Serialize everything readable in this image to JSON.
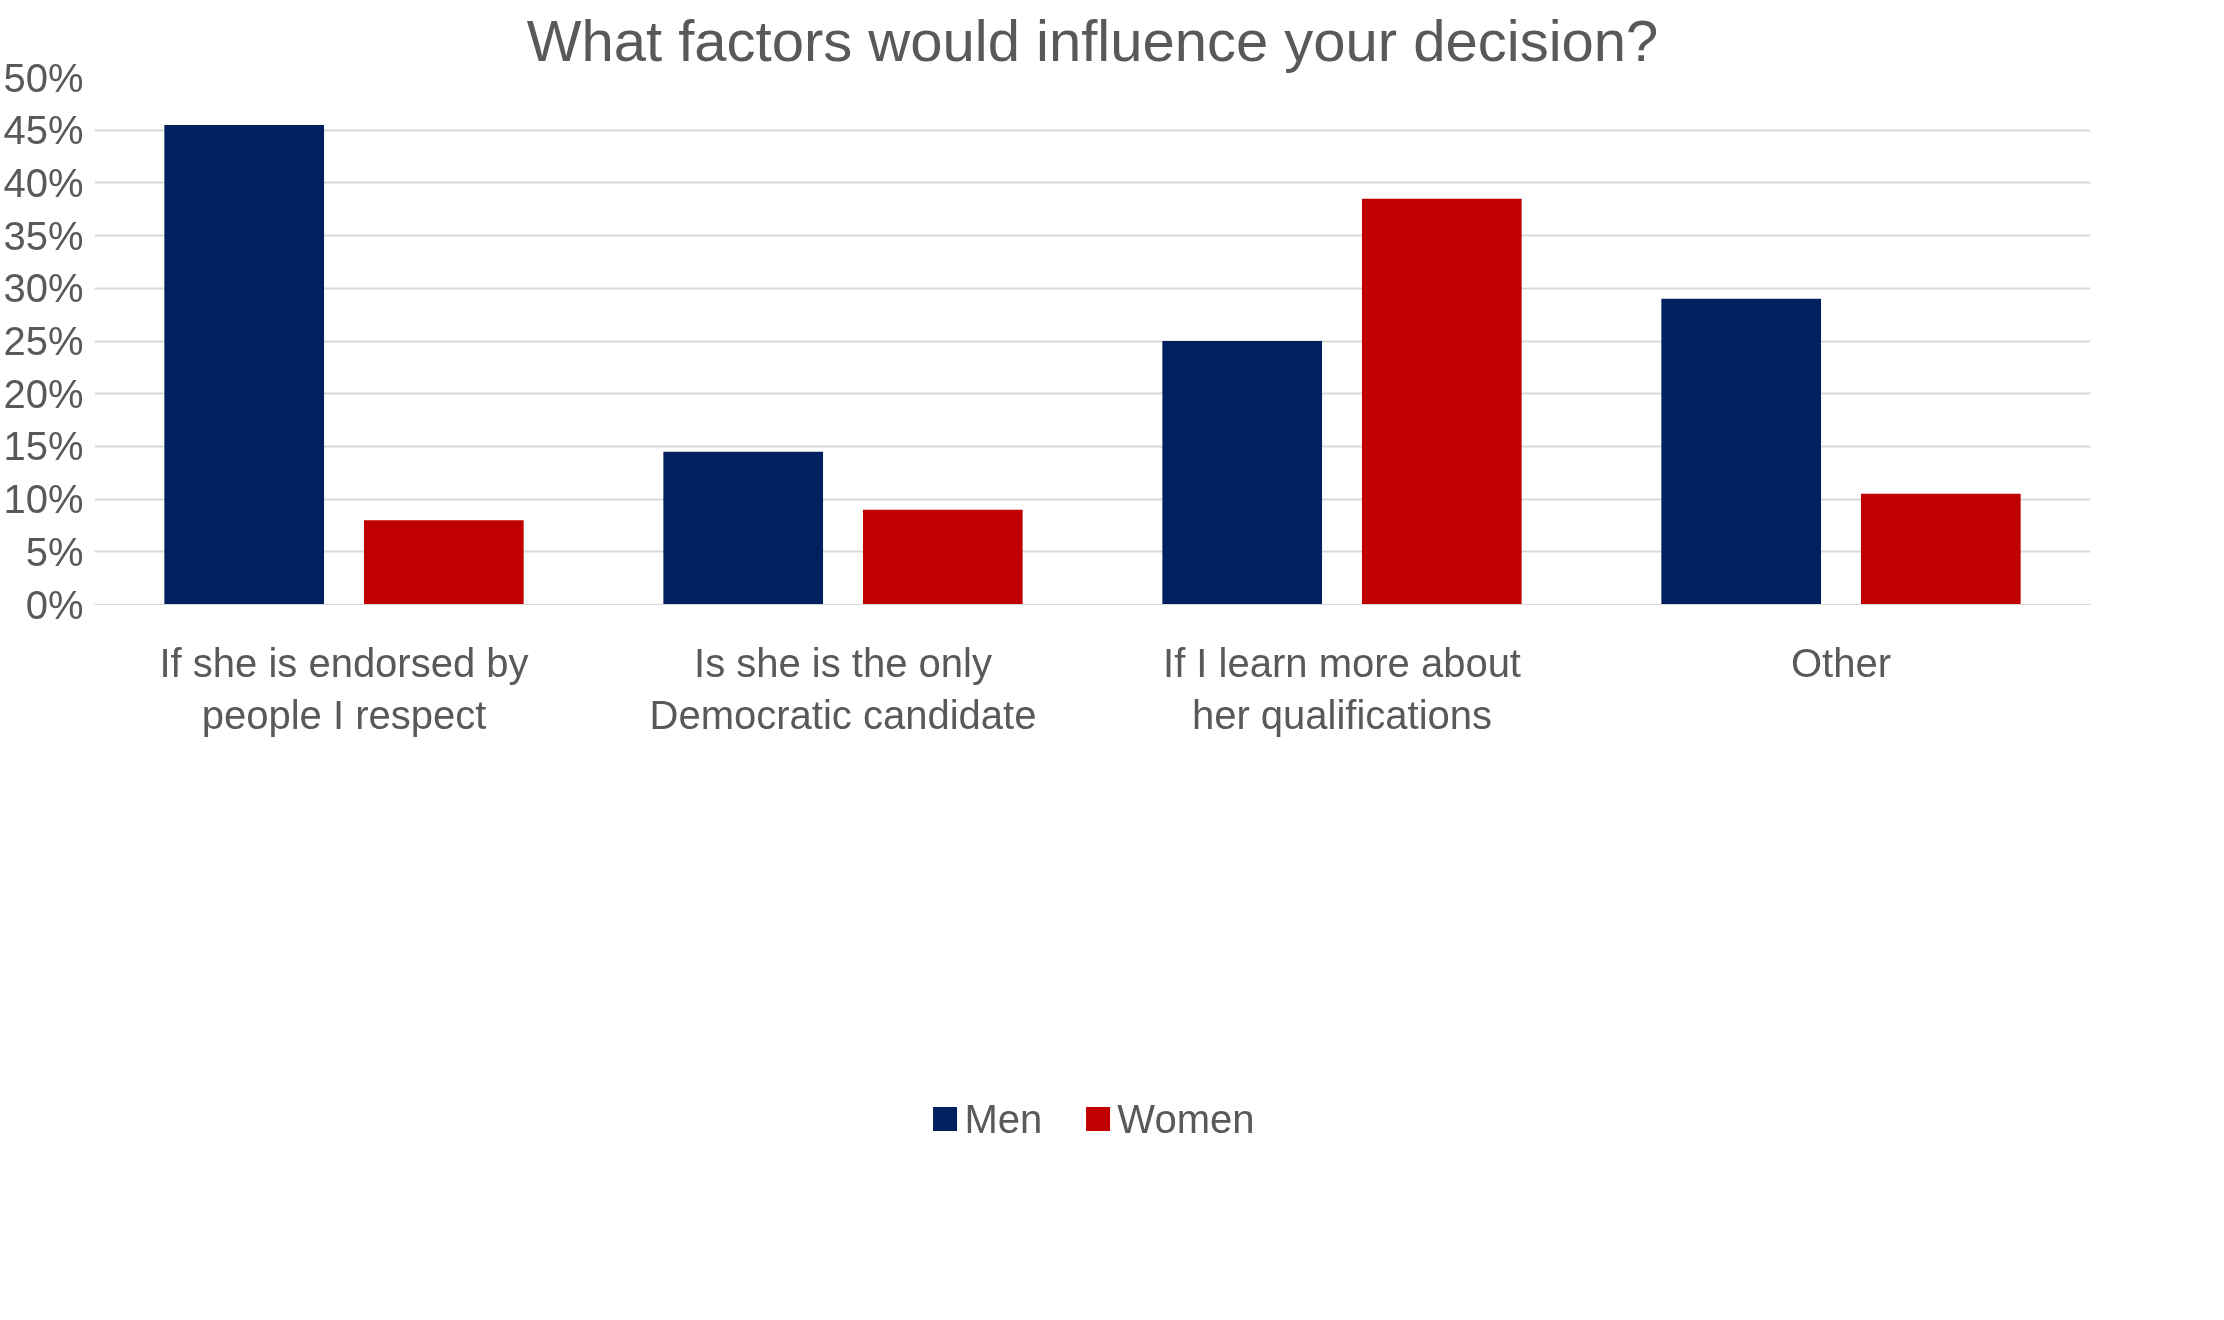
{
  "chart_data": {
    "type": "bar",
    "title": "What factors would influence your decision?",
    "categories": [
      "If she is endorsed by people I respect",
      "Is she is the only Democratic candidate",
      "If I learn more about her qualifications",
      "Other"
    ],
    "series": [
      {
        "name": "Men",
        "color": "#002060",
        "values": [
          45.5,
          14.5,
          25,
          29
        ]
      },
      {
        "name": "Women",
        "color": "#c00000",
        "values": [
          8,
          9,
          38.5,
          10.5
        ]
      }
    ],
    "ylim": [
      0,
      50
    ],
    "yticks": [
      {
        "value": 0,
        "label": "0%"
      },
      {
        "value": 5,
        "label": "5%"
      },
      {
        "value": 10,
        "label": "10%"
      },
      {
        "value": 15,
        "label": "15%"
      },
      {
        "value": 20,
        "label": "20%"
      },
      {
        "value": 25,
        "label": "25%"
      },
      {
        "value": 30,
        "label": "30%"
      },
      {
        "value": 35,
        "label": "35%"
      },
      {
        "value": 40,
        "label": "40%"
      },
      {
        "value": 45,
        "label": "45%"
      },
      {
        "value": 50,
        "label": "50%"
      }
    ],
    "grid": "y",
    "legend": "bottom"
  }
}
